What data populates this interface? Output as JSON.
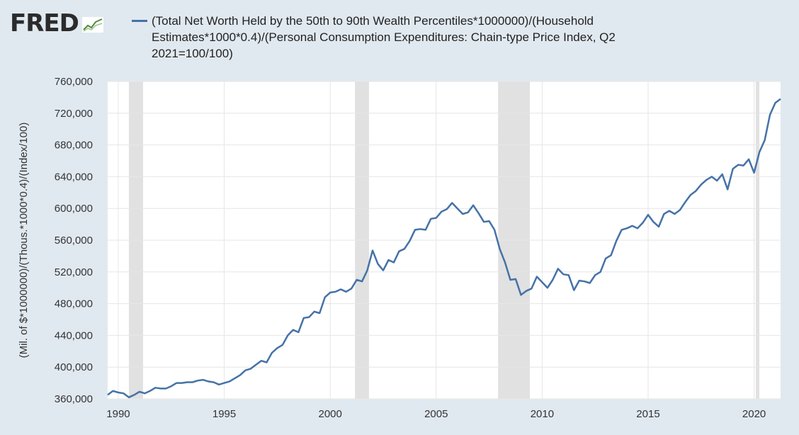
{
  "brand": {
    "logo_text": "FRED",
    "logo_icon": "line-chart-icon"
  },
  "chart_data": {
    "type": "line",
    "title": "(Total Net Worth Held by the 50th to 90th Wealth Percentiles*1000000)/(Household Estimates*1000*0.4)/(Personal Consumption Expenditures: Chain-type Price Index, Q2 2021=100/100)",
    "xlabel": "",
    "ylabel": "(Mil. of $*1000000)/(Thous.*1000*0.4)/(Index/100)",
    "xlim": [
      1989.5,
      2021.25
    ],
    "ylim": [
      360000,
      760000
    ],
    "y_ticks": [
      360000,
      400000,
      440000,
      480000,
      520000,
      560000,
      600000,
      640000,
      680000,
      720000,
      760000
    ],
    "y_tick_labels": [
      "360,000",
      "400,000",
      "440,000",
      "480,000",
      "520,000",
      "560,000",
      "600,000",
      "640,000",
      "680,000",
      "720,000",
      "760,000"
    ],
    "x_ticks": [
      1990,
      1995,
      2000,
      2005,
      2010,
      2015,
      2020
    ],
    "x_tick_labels": [
      "1990",
      "1995",
      "2000",
      "2005",
      "2010",
      "2015",
      "2020"
    ],
    "grid": true,
    "line_color": "#4572a7",
    "recession_color": "#e1e1e1",
    "recessions": [
      [
        1990.5,
        1991.17
      ],
      [
        2001.17,
        2001.83
      ],
      [
        2007.92,
        2009.42
      ],
      [
        2020.08,
        2020.25
      ]
    ],
    "series": [
      {
        "name": "(Total Net Worth Held by the 50th to 90th Wealth Percentiles*1000000)/(Household Estimates*1000*0.4)/(Personal Consumption Expenditures: Chain-type Price Index, Q2 2021=100/100)",
        "x": [
          1989.5,
          1989.75,
          1990.0,
          1990.25,
          1990.5,
          1990.75,
          1991.0,
          1991.25,
          1991.5,
          1991.75,
          1992.0,
          1992.25,
          1992.5,
          1992.75,
          1993.0,
          1993.25,
          1993.5,
          1993.75,
          1994.0,
          1994.25,
          1994.5,
          1994.75,
          1995.0,
          1995.25,
          1995.5,
          1995.75,
          1996.0,
          1996.25,
          1996.5,
          1996.75,
          1997.0,
          1997.25,
          1997.5,
          1997.75,
          1998.0,
          1998.25,
          1998.5,
          1998.75,
          1999.0,
          1999.25,
          1999.5,
          1999.75,
          2000.0,
          2000.25,
          2000.5,
          2000.75,
          2001.0,
          2001.25,
          2001.5,
          2001.75,
          2002.0,
          2002.25,
          2002.5,
          2002.75,
          2003.0,
          2003.25,
          2003.5,
          2003.75,
          2004.0,
          2004.25,
          2004.5,
          2004.75,
          2005.0,
          2005.25,
          2005.5,
          2005.75,
          2006.0,
          2006.25,
          2006.5,
          2006.75,
          2007.0,
          2007.25,
          2007.5,
          2007.75,
          2008.0,
          2008.25,
          2008.5,
          2008.75,
          2009.0,
          2009.25,
          2009.5,
          2009.75,
          2010.0,
          2010.25,
          2010.5,
          2010.75,
          2011.0,
          2011.25,
          2011.5,
          2011.75,
          2012.0,
          2012.25,
          2012.5,
          2012.75,
          2013.0,
          2013.25,
          2013.5,
          2013.75,
          2014.0,
          2014.25,
          2014.5,
          2014.75,
          2015.0,
          2015.25,
          2015.5,
          2015.75,
          2016.0,
          2016.25,
          2016.5,
          2016.75,
          2017.0,
          2017.25,
          2017.5,
          2017.75,
          2018.0,
          2018.25,
          2018.5,
          2018.75,
          2019.0,
          2019.25,
          2019.5,
          2019.75,
          2020.0,
          2020.25,
          2020.5,
          2020.75,
          2021.0,
          2021.25
        ],
        "values": [
          365000,
          370000,
          368000,
          367000,
          362000,
          365000,
          369000,
          367000,
          370000,
          374000,
          373000,
          373000,
          376000,
          380000,
          380000,
          381000,
          381000,
          383000,
          384000,
          382000,
          381000,
          378000,
          380000,
          382000,
          386000,
          390000,
          396000,
          398000,
          403000,
          408000,
          406000,
          418000,
          424000,
          428000,
          440000,
          447000,
          444000,
          462000,
          463000,
          470000,
          468000,
          488000,
          494000,
          495000,
          498000,
          495000,
          499000,
          510000,
          508000,
          522000,
          547000,
          530000,
          522000,
          535000,
          532000,
          546000,
          549000,
          559000,
          573000,
          574000,
          573000,
          587000,
          588000,
          596000,
          599000,
          607000,
          600000,
          593000,
          595000,
          604000,
          594000,
          583000,
          584000,
          573000,
          549000,
          532000,
          510000,
          511000,
          491000,
          496000,
          499000,
          514000,
          507000,
          500000,
          510000,
          524000,
          517000,
          516000,
          497000,
          509000,
          508000,
          506000,
          516000,
          520000,
          537000,
          541000,
          559000,
          573000,
          575000,
          578000,
          575000,
          582000,
          592000,
          583000,
          577000,
          593000,
          597000,
          593000,
          598000,
          608000,
          617000,
          622000,
          630000,
          636000,
          640000,
          635000,
          643000,
          624000,
          650000,
          655000,
          654000,
          662000,
          645000,
          671000,
          686000,
          718000,
          733000,
          738000
        ]
      }
    ]
  }
}
